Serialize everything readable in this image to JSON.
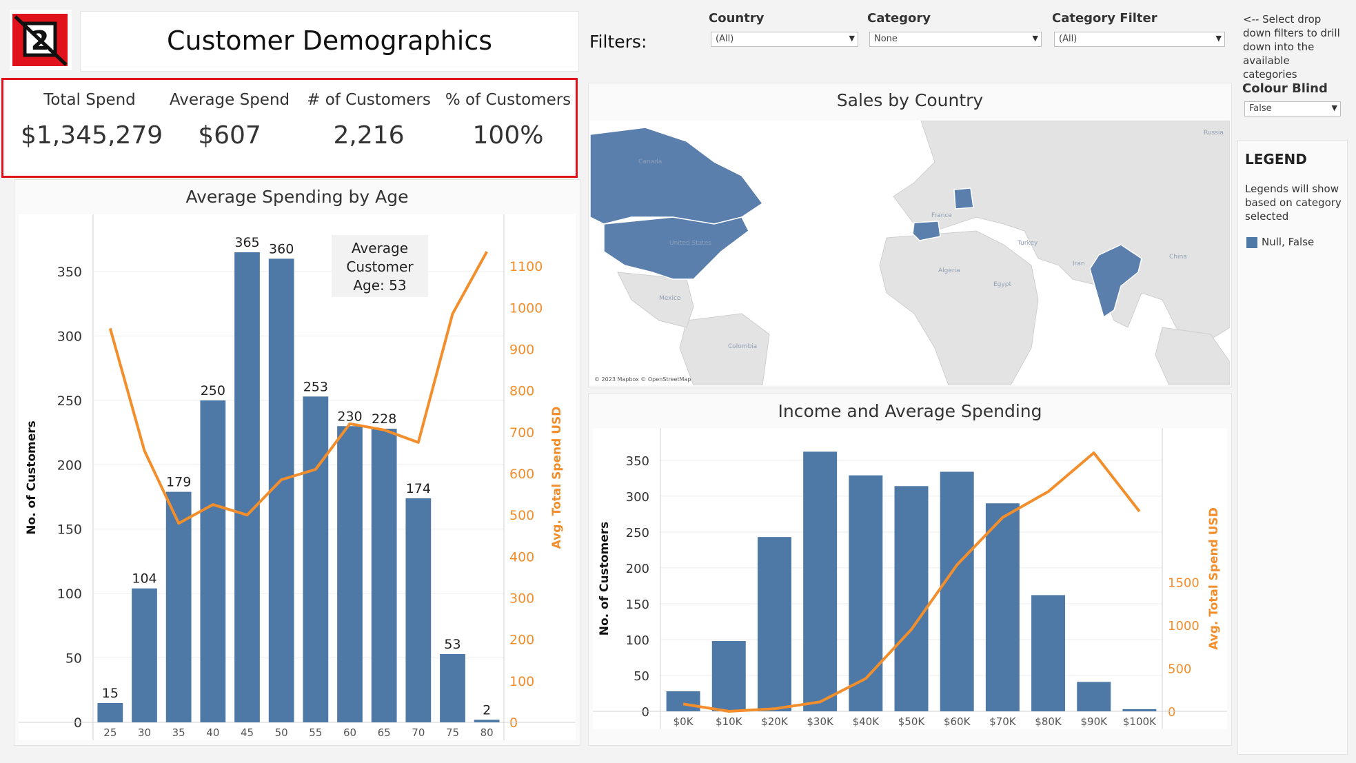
{
  "header": {
    "logo_text": "2",
    "title": "Customer Demographics"
  },
  "kpis": [
    {
      "label": "Total Spend",
      "value": "$1,345,279"
    },
    {
      "label": "Average Spend",
      "value": "$607"
    },
    {
      "label": "# of Customers",
      "value": "2,216"
    },
    {
      "label": "% of Customers",
      "value": "100%"
    }
  ],
  "filters": {
    "title": "Filters:",
    "country": {
      "label": "Country",
      "value": "(All)"
    },
    "category": {
      "label": "Category",
      "value": "None"
    },
    "category_filter": {
      "label": "Category Filter",
      "value": "(All)"
    }
  },
  "sidebar": {
    "hint": "<-- Select drop down filters to drill down into the available categories",
    "colour_blind_label": "Colour Blind",
    "colour_blind_value": "False",
    "legend_title": "LEGEND",
    "legend_note": "Legends will show based on category selected",
    "legend_item": "Null, False",
    "legend_color": "#4e79a7"
  },
  "colors": {
    "bar": "#4e79a7",
    "line": "#f28e2b",
    "accent_border": "#e0131c",
    "map_land": "#e3e3e3",
    "map_water": "#ffffff",
    "map_highlight": "#5b7fad"
  },
  "map": {
    "title": "Sales by Country",
    "labels": [
      "Canada",
      "United States",
      "Mexico",
      "Colombia",
      "France",
      "Algeria",
      "Egypt",
      "Turkey",
      "Iran",
      "China",
      "Russia"
    ],
    "attribution": "© 2023 Mapbox © OpenStreetMap",
    "highlighted_countries": [
      "Canada",
      "United States",
      "Germany",
      "Spain",
      "India"
    ]
  },
  "chart_data": [
    {
      "type": "bar",
      "title": "Average Spending by Age",
      "categories": [
        "25",
        "30",
        "35",
        "40",
        "45",
        "50",
        "55",
        "60",
        "65",
        "70",
        "75",
        "80"
      ],
      "series": [
        {
          "values": [
            15,
            104,
            179,
            250,
            365,
            360,
            253,
            230,
            228,
            174,
            53,
            2
          ]
        },
        {
          "type": "line",
          "values": [
            950,
            655,
            480,
            525,
            500,
            585,
            610,
            720,
            705,
            675,
            985,
            1135
          ]
        }
      ],
      "ylabel": "No. of Customers",
      "y2label": "Avg. Total Spend USD",
      "ylim": [
        0,
        380
      ],
      "y_ticks": [
        0,
        50,
        100,
        150,
        200,
        250,
        300,
        350
      ],
      "y2lim": [
        0,
        1180
      ],
      "y2_ticks": [
        0,
        100,
        200,
        300,
        400,
        500,
        600,
        700,
        800,
        900,
        1000,
        1100
      ],
      "bar_labels": [
        "15",
        "104",
        "179",
        "250",
        "365",
        "360",
        "253",
        "230",
        "228",
        "174",
        "53",
        "2"
      ],
      "annotation": [
        "Average",
        "Customer",
        "Age: 53"
      ]
    },
    {
      "type": "bar",
      "title": "Income and Average Spending",
      "categories": [
        "$0K",
        "$10K",
        "$20K",
        "$30K",
        "$40K",
        "$50K",
        "$60K",
        "$70K",
        "$80K",
        "$90K",
        "$100K"
      ],
      "series": [
        {
          "values": [
            28,
            98,
            243,
            362,
            329,
            314,
            334,
            290,
            162,
            41,
            3
          ]
        },
        {
          "type": "line",
          "values": [
            85,
            0,
            30,
            110,
            380,
            950,
            1700,
            2250,
            2550,
            3000,
            2320
          ]
        }
      ],
      "ylabel": "No. of Customers",
      "y2label": "Avg. Total Spend USD",
      "ylim": [
        0,
        370
      ],
      "y_ticks": [
        0,
        50,
        100,
        150,
        200,
        250,
        300,
        350
      ],
      "y2lim": [
        0,
        3080
      ],
      "y2_ticks": [
        0,
        500,
        1000,
        1500
      ],
      "y2_tick_labels": [
        "0",
        "500",
        "1000",
        "1500"
      ]
    }
  ]
}
